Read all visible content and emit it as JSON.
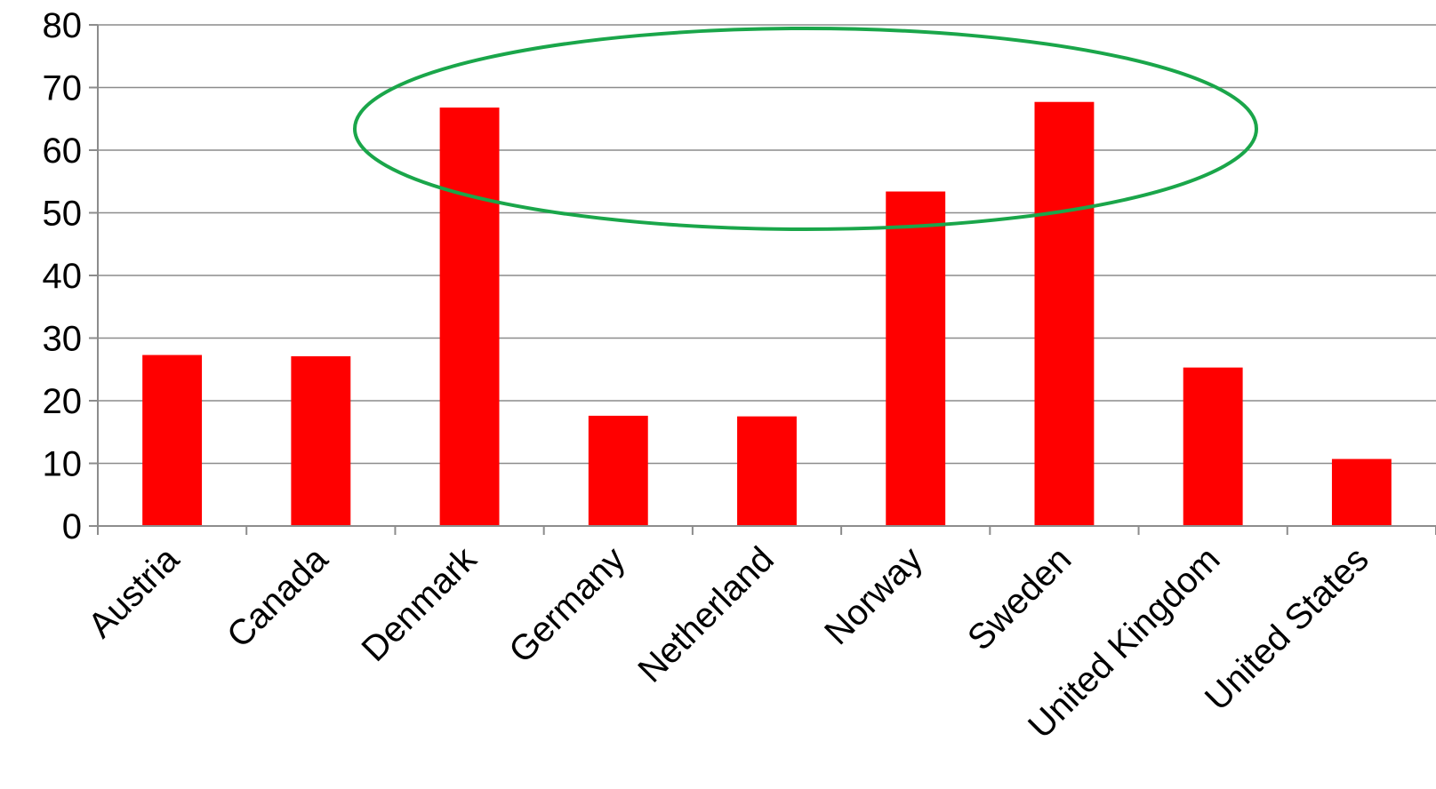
{
  "chart_data": {
    "type": "bar",
    "categories": [
      "Austria",
      "Canada",
      "Denmark",
      "Germany",
      "Netherland",
      "Norway",
      "Sweden",
      "United Kingdom",
      "United States"
    ],
    "values": [
      27.3,
      27.1,
      66.8,
      17.6,
      17.5,
      53.4,
      67.7,
      25.3,
      10.7
    ],
    "ylim": [
      0,
      80
    ],
    "yticks": [
      0,
      10,
      20,
      30,
      40,
      50,
      60,
      70,
      80
    ],
    "grid": true,
    "bar_color": "#ff0000",
    "title": "",
    "xlabel": "",
    "ylabel": "",
    "annotation": {
      "type": "ellipse",
      "color": "#1aa64a",
      "highlights": [
        "Denmark",
        "Norway",
        "Sweden"
      ]
    }
  }
}
